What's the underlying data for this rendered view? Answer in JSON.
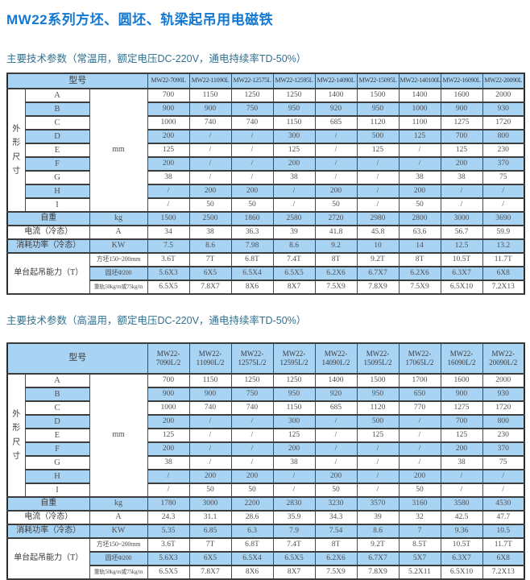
{
  "page": {
    "title": "MW22系列方坯、圆坯、轨梁起吊用电磁铁"
  },
  "colors": {
    "title_blue": "#1278d2",
    "subtitle_blue": "#30708f",
    "row_blue": "#a9d3f2",
    "border": "#3c3c3c"
  },
  "tables": [
    {
      "subtitle": "主要技术参数（常温用，额定电压DC-220V，通电持续率TD-50%）",
      "header_label": "型号",
      "header_two_line": false,
      "models": [
        "MW22-7090L",
        "MW22-11090L",
        "MW22-12575L",
        "MW22-12595L",
        "MW22-14090L",
        "MW22-15095L",
        "MW22-140100L",
        "MW22-16090L",
        "MW22-20090L"
      ],
      "dim_group_label": "外形尺寸",
      "dim_unit": "mm",
      "dim_rows": [
        {
          "label": "A",
          "values": [
            "700",
            "1150",
            "1250",
            "1250",
            "1400",
            "1500",
            "1400",
            "1600",
            "2000"
          ]
        },
        {
          "label": "B",
          "values": [
            "900",
            "900",
            "750",
            "950",
            "920",
            "950",
            "1000",
            "900",
            "930"
          ]
        },
        {
          "label": "C",
          "values": [
            "1000",
            "740",
            "740",
            "1150",
            "685",
            "1120",
            "1100",
            "1275",
            "1720"
          ]
        },
        {
          "label": "D",
          "values": [
            "200",
            "/",
            "/",
            "300",
            "/",
            "500",
            "125",
            "700",
            "800"
          ]
        },
        {
          "label": "E",
          "values": [
            "125",
            "/",
            "/",
            "125",
            "/",
            "125",
            "/",
            "125",
            "230"
          ]
        },
        {
          "label": "F",
          "values": [
            "200",
            "/",
            "/",
            "200",
            "/",
            "/",
            "/",
            "200",
            "370"
          ]
        },
        {
          "label": "G",
          "values": [
            "38",
            "/",
            "/",
            "38",
            "/",
            "/",
            "38",
            "38",
            "75"
          ]
        },
        {
          "label": "H",
          "values": [
            "/",
            "200",
            "200",
            "/",
            "200",
            "/",
            "200",
            "/",
            "/"
          ]
        },
        {
          "label": "I",
          "values": [
            "/",
            "50",
            "50",
            "/",
            "50",
            "/",
            "50",
            "/",
            "/"
          ]
        }
      ],
      "rows": [
        {
          "label": "自重",
          "unit": "kg",
          "values": [
            "1500",
            "2500",
            "1860",
            "2580",
            "2720",
            "2980",
            "2800",
            "3000",
            "3690"
          ]
        },
        {
          "label": "电流（冷态）",
          "unit": "A",
          "values": [
            "34",
            "38",
            "36.3",
            "39",
            "41.8",
            "45.8",
            "63.6",
            "56.7",
            "59.9"
          ]
        },
        {
          "label": "消耗功率（冷态）",
          "unit": "KW",
          "values": [
            "7.5",
            "8.6",
            "7.98",
            "8.6",
            "9.2",
            "10",
            "14",
            "12.5",
            "13.2"
          ]
        }
      ],
      "capacity_group_label": "单台起吊能力（T）",
      "capacity_rows": [
        {
          "label": "方坯150~200mm",
          "values": [
            "3.6T",
            "7T",
            "6.8T",
            "7.4T",
            "8T",
            "9.2T",
            "8T",
            "10.5T",
            "11.7T"
          ]
        },
        {
          "label": "圆坯Φ200",
          "values": [
            "5.6X3",
            "6X5",
            "6.5X4",
            "6.5X5",
            "6.2X6",
            "6.7X7",
            "6.2X6",
            "6.3X7",
            "6X8"
          ]
        },
        {
          "label": "重轨50kg/m或75kg/m",
          "values": [
            "6.5X5",
            "7.8X7",
            "8X6",
            "8X7",
            "7.5X9",
            "7.8X9",
            "7.5X9",
            "6.5X10",
            "7.2X13"
          ]
        }
      ]
    },
    {
      "subtitle": "主要技术参数（高温用，额定电压DC-220V，通电持续率TD-50%）",
      "header_label": "型号",
      "header_two_line": true,
      "models": [
        "MW22-7090L/2",
        "MW22-11090L/2",
        "MW22-12575L/2",
        "MW22-12595L/2",
        "MW22-14090L/2",
        "MW22-15095L/2",
        "MW22-17065L/2",
        "MW22-16090L/2",
        "MW22-20090L/2"
      ],
      "dim_group_label": "外形尺寸",
      "dim_unit": "mm",
      "dim_rows": [
        {
          "label": "A",
          "values": [
            "700",
            "1150",
            "1250",
            "1250",
            "1400",
            "1500",
            "1700",
            "1600",
            "2000"
          ]
        },
        {
          "label": "B",
          "values": [
            "900",
            "900",
            "750",
            "950",
            "920",
            "950",
            "650",
            "900",
            "930"
          ]
        },
        {
          "label": "C",
          "values": [
            "1000",
            "740",
            "740",
            "1150",
            "685",
            "1120",
            "770",
            "1275",
            "1720"
          ]
        },
        {
          "label": "D",
          "values": [
            "200",
            "/",
            "/",
            "300",
            "/",
            "500",
            "/",
            "700",
            "800"
          ]
        },
        {
          "label": "E",
          "values": [
            "125",
            "/",
            "/",
            "125",
            "/",
            "125",
            "/",
            "125",
            "230"
          ]
        },
        {
          "label": "F",
          "values": [
            "200",
            "/",
            "/",
            "200",
            "/",
            "/",
            "/",
            "200",
            "370"
          ]
        },
        {
          "label": "G",
          "values": [
            "38",
            "/",
            "/",
            "38",
            "/",
            "/",
            "/",
            "38",
            "75"
          ]
        },
        {
          "label": "H",
          "values": [
            "/",
            "200",
            "200",
            "/",
            "200",
            "/",
            "200",
            "/",
            "/"
          ]
        },
        {
          "label": "I",
          "values": [
            "/",
            "50",
            "50",
            "/",
            "50",
            "/",
            "50",
            "/",
            "/"
          ]
        }
      ],
      "rows": [
        {
          "label": "自重",
          "unit": "kg",
          "values": [
            "1780",
            "3000",
            "2200",
            "2830",
            "3230",
            "3570",
            "3160",
            "3580",
            "4530"
          ]
        },
        {
          "label": "电流（冷态）",
          "unit": "A",
          "values": [
            "24.3",
            "31.1",
            "28.6",
            "35.9",
            "34.3",
            "39",
            "32",
            "42.5",
            "47.7"
          ]
        },
        {
          "label": "消耗功率（冷态）",
          "unit": "KW",
          "values": [
            "5.35",
            "6.85",
            "6.3",
            "7.9",
            "7.54",
            "8.6",
            "7",
            "9.36",
            "10.5"
          ]
        }
      ],
      "capacity_group_label": "单台起吊能力（T）",
      "capacity_rows": [
        {
          "label": "方坯150~200mm",
          "values": [
            "3.6T",
            "7T",
            "6.8T",
            "7.4T",
            "8T",
            "9.2T",
            "8.5T",
            "10.5T",
            "11.7T"
          ]
        },
        {
          "label": "圆坯Φ200",
          "values": [
            "5.6X3",
            "6X5",
            "6.5X4",
            "6.5X5",
            "6.2X6",
            "6.7X7",
            "5X7",
            "6.3X7",
            "6X8"
          ]
        },
        {
          "label": "重轨50kg/m或75kg/m",
          "values": [
            "6.5X5",
            "7.8X7",
            "8X6",
            "8X7",
            "7.5X9",
            "7.8X9",
            "5.2X11",
            "6.5X10",
            "7.2X13"
          ]
        }
      ]
    }
  ]
}
